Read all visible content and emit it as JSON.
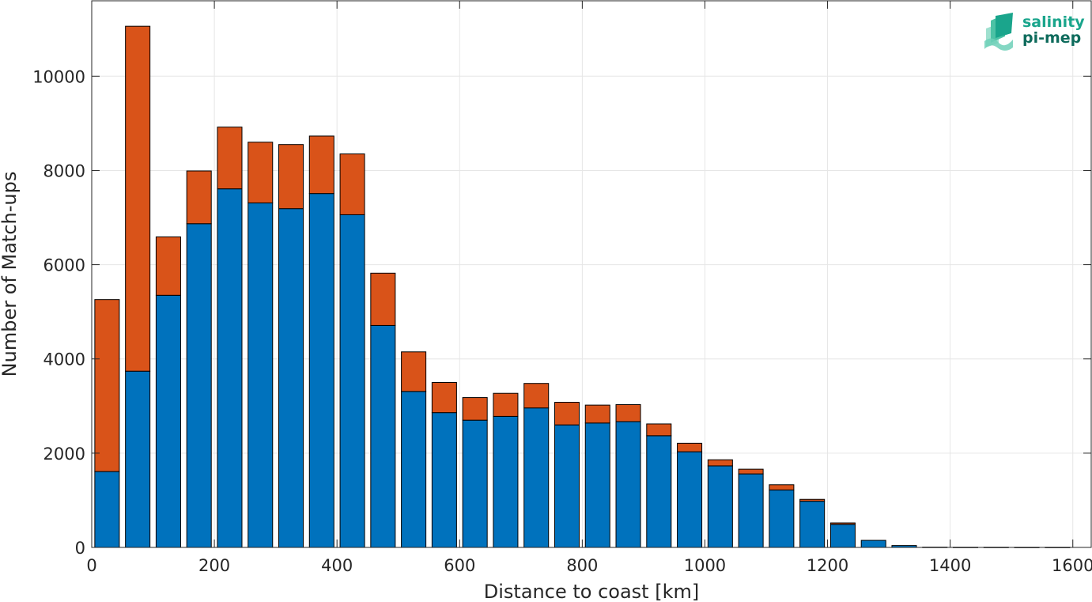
{
  "chart_data": {
    "type": "bar",
    "stacked": true,
    "xlabel": "Distance to coast [km]",
    "ylabel": "Number of Match-ups",
    "xlim": [
      0,
      1630
    ],
    "ylim": [
      0,
      11600
    ],
    "xticks": [
      0,
      200,
      400,
      600,
      800,
      1000,
      1200,
      1400,
      1600
    ],
    "yticks": [
      0,
      2000,
      4000,
      6000,
      8000,
      10000
    ],
    "grid": true,
    "bin_width": 50,
    "bar_width": 40,
    "x": [
      25,
      75,
      125,
      175,
      225,
      275,
      325,
      375,
      425,
      475,
      525,
      575,
      625,
      675,
      725,
      775,
      825,
      875,
      925,
      975,
      1025,
      1075,
      1125,
      1175,
      1225,
      1275,
      1325,
      1375,
      1425,
      1475,
      1525,
      1575
    ],
    "series": [
      {
        "color": "#0072BD",
        "values": [
          1610,
          3740,
          5350,
          6870,
          7610,
          7310,
          7190,
          7510,
          7060,
          4710,
          3310,
          2860,
          2700,
          2780,
          2960,
          2600,
          2640,
          2670,
          2370,
          2030,
          1730,
          1560,
          1220,
          980,
          490,
          150,
          40,
          5,
          3,
          3,
          2,
          2
        ]
      },
      {
        "color": "#D95319",
        "values": [
          3650,
          7320,
          1240,
          1120,
          1310,
          1290,
          1360,
          1220,
          1290,
          1110,
          840,
          640,
          480,
          490,
          520,
          480,
          380,
          360,
          250,
          180,
          130,
          100,
          110,
          40,
          30,
          0,
          0,
          0,
          0,
          0,
          0,
          0
        ]
      }
    ]
  },
  "logo": {
    "line1": "salinity",
    "line2": "pi-mep",
    "color1": "#1aa58c",
    "color2": "#0e6b5c"
  }
}
